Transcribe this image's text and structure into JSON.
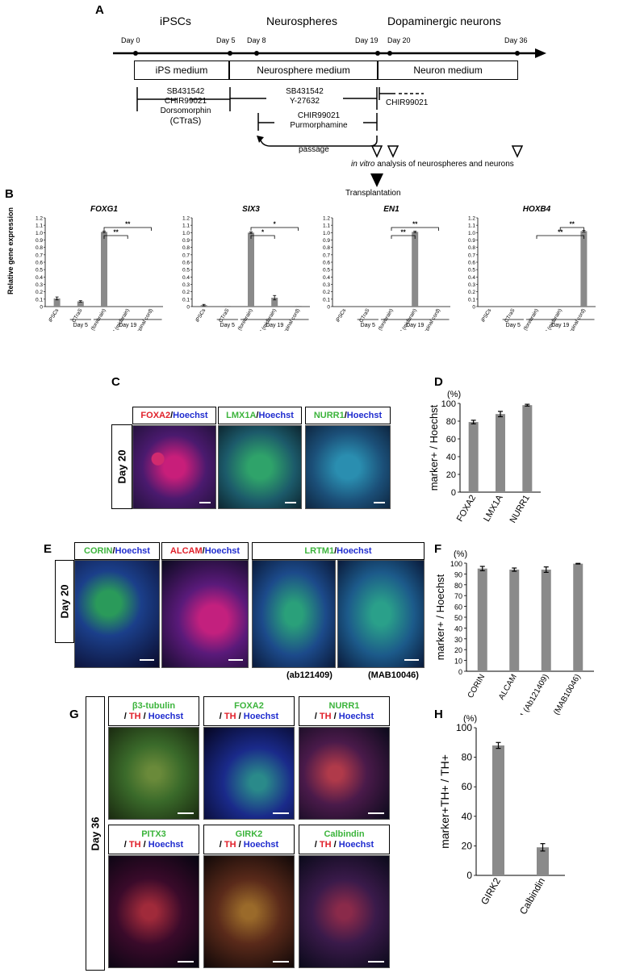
{
  "panels": {
    "A": {
      "label": "A",
      "stages": [
        "iPSCs",
        "Neurospheres",
        "Dopaminergic neurons"
      ],
      "days": [
        "Day 0",
        "Day 5",
        "Day 8",
        "Day 19",
        "Day 20",
        "Day 36"
      ],
      "media": [
        "iPS medium",
        "Neurosphere medium",
        "Neuron medium"
      ],
      "treat_ctras": [
        "SB431542",
        "CHIR99021",
        "Dorsomorphin",
        "(CTraS)"
      ],
      "treat_sb_y": [
        "SB431542",
        "Y-27632"
      ],
      "treat_chir_pm": [
        "CHIR99021",
        "Purmorphamine"
      ],
      "treat_chir_neuron": "CHIR99021",
      "passage": "passage",
      "analysis_italic": "in vitro",
      "analysis_rest": " analysis of neurospheres and neurons",
      "transplantation": "Transplantation"
    },
    "B": {
      "label": "B",
      "ylabel": "Relative gene expression"
    },
    "C": {
      "label": "C",
      "day": "Day 20",
      "images": [
        {
          "marker": "FOXA2",
          "sep": " / ",
          "stain": "Hoechst",
          "marker_color": "red"
        },
        {
          "marker": "LMX1A",
          "sep": " / ",
          "stain": "Hoechst",
          "marker_color": "green"
        },
        {
          "marker": "NURR1",
          "sep": " / ",
          "stain": "Hoechst",
          "marker_color": "green"
        }
      ]
    },
    "D": {
      "label": "D"
    },
    "E": {
      "label": "E",
      "day": "Day 20",
      "images": [
        {
          "marker": "CORIN",
          "sep": " / ",
          "stain": "Hoechst",
          "marker_color": "green"
        },
        {
          "marker": "ALCAM",
          "sep": " / ",
          "stain": "Hoechst",
          "marker_color": "red"
        },
        {
          "marker": "LRTM1",
          "sep": "/ ",
          "stain": "Hoechst",
          "marker_color": "green"
        }
      ],
      "antibodies": [
        "(ab121409)",
        "(MAB10046)"
      ]
    },
    "F": {
      "label": "F"
    },
    "G": {
      "label": "G",
      "day": "Day 36",
      "images": [
        {
          "marker": "β3-tubulin",
          "th": "TH",
          "stain": "Hoechst"
        },
        {
          "marker": "FOXA2",
          "th": "TH",
          "stain": "Hoechst"
        },
        {
          "marker": "NURR1",
          "th": "TH",
          "stain": "Hoechst"
        },
        {
          "marker": "PITX3",
          "th": "TH",
          "stain": "Hoechst"
        },
        {
          "marker": "GIRK2",
          "th": "TH",
          "stain": "Hoechst"
        },
        {
          "marker": "Calbindin",
          "th": "TH",
          "stain": "Hoechst"
        }
      ],
      "slash": "/ "
    },
    "H": {
      "label": "H"
    }
  },
  "chart_data": [
    {
      "id": "B-FOXG1",
      "type": "bar",
      "title": "FOXG1",
      "ylabel": "Relative gene expression",
      "ylim": [
        0,
        1.2
      ],
      "yticks": [
        "0",
        "0.1",
        "0.2",
        "0.3",
        "0.4",
        "0.5",
        "0.6",
        "0.7",
        "0.8",
        "0.9",
        "1.0",
        "1.1",
        "1.2"
      ],
      "categories": [
        "iPSCs",
        "CTraS",
        "IWR-1 (forebrain)",
        "CHIR+PM (midbrain)",
        "CHIR+RA (spinal cord)"
      ],
      "values": [
        0.11,
        0.07,
        1.01,
        0.0,
        0.0
      ],
      "errors": [
        0.02,
        0.01,
        0.01,
        0.0,
        0.0
      ],
      "groups": [
        {
          "label": "Day 5",
          "from": 1,
          "to": 1
        },
        {
          "label": "Day 19",
          "from": 2,
          "to": 4
        }
      ],
      "significance": [
        {
          "from": 2,
          "to": 3,
          "label": "**"
        },
        {
          "from": 2,
          "to": 4,
          "label": "**"
        }
      ]
    },
    {
      "id": "B-SIX3",
      "type": "bar",
      "title": "SIX3",
      "ylim": [
        0,
        1.2
      ],
      "yticks": [
        "0",
        "0.1",
        "0.2",
        "0.3",
        "0.4",
        "0.5",
        "0.6",
        "0.7",
        "0.8",
        "0.9",
        "1.0",
        "1.1",
        "1.2"
      ],
      "categories": [
        "iPSCs",
        "CTraS",
        "IWR-1 (forebrain)",
        "CHIR+PM (midbrain)",
        "CHIR+RA (spinal cord)"
      ],
      "values": [
        0.02,
        0.01,
        1.0,
        0.12,
        0.01
      ],
      "errors": [
        0.01,
        0.0,
        0.01,
        0.03,
        0.0
      ],
      "groups": [
        {
          "label": "Day 5",
          "from": 1,
          "to": 1
        },
        {
          "label": "Day 19",
          "from": 2,
          "to": 4
        }
      ],
      "significance": [
        {
          "from": 2,
          "to": 3,
          "label": "*"
        },
        {
          "from": 2,
          "to": 4,
          "label": "*"
        }
      ]
    },
    {
      "id": "B-EN1",
      "type": "bar",
      "title": "EN1",
      "ylim": [
        0,
        1.2
      ],
      "yticks": [
        "0",
        "0.1",
        "0.2",
        "0.3",
        "0.4",
        "0.5",
        "0.6",
        "0.7",
        "0.8",
        "0.9",
        "1.0",
        "1.1",
        "1.2"
      ],
      "categories": [
        "iPSCs",
        "CTraS",
        "IWR-1 (forebrain)",
        "CHIR+PM (midbrain)",
        "CHIR+RA (spinal cord)"
      ],
      "values": [
        0.0,
        0.0,
        0.0,
        1.01,
        0.0
      ],
      "errors": [
        0.0,
        0.0,
        0.0,
        0.01,
        0.0
      ],
      "groups": [
        {
          "label": "Day 5",
          "from": 1,
          "to": 1
        },
        {
          "label": "Day 19",
          "from": 2,
          "to": 4
        }
      ],
      "significance": [
        {
          "from": 2,
          "to": 3,
          "label": "**"
        },
        {
          "from": 2,
          "to": 4,
          "label": "**"
        }
      ]
    },
    {
      "id": "B-HOXB4",
      "type": "bar",
      "title": "HOXB4",
      "ylim": [
        0,
        1.2
      ],
      "yticks": [
        "0",
        "0.1",
        "0.2",
        "0.3",
        "0.4",
        "0.5",
        "0.6",
        "0.7",
        "0.8",
        "0.9",
        "1.0",
        "1.1",
        "1.2"
      ],
      "categories": [
        "iPSCs",
        "CTraS",
        "IWR-1 (forebrain)",
        "CHIR+PM (midbrain)",
        "CHIR+RA (spinal cord)"
      ],
      "values": [
        0.0,
        0.0,
        0.0,
        0.0,
        1.02
      ],
      "errors": [
        0.0,
        0.0,
        0.0,
        0.0,
        0.01
      ],
      "groups": [
        {
          "label": "Day 5",
          "from": 1,
          "to": 1
        },
        {
          "label": "Day 19",
          "from": 2,
          "to": 4
        }
      ],
      "significance": [
        {
          "from": 2,
          "to": 4,
          "label": "**"
        },
        {
          "from": 3,
          "to": 4,
          "label": "**"
        }
      ]
    },
    {
      "id": "D",
      "type": "bar",
      "ylabel": "marker+ / Hoechst",
      "unit": "(%)",
      "ylim": [
        0,
        100
      ],
      "yticks": [
        "0",
        "20",
        "40",
        "60",
        "80",
        "100"
      ],
      "categories": [
        "FOXA2",
        "LMX1A",
        "NURR1"
      ],
      "values": [
        79,
        88,
        98
      ],
      "errors": [
        2,
        3,
        1
      ]
    },
    {
      "id": "F",
      "type": "bar",
      "ylabel": "marker+ / Hoechst",
      "unit": "(%)",
      "ylim": [
        0,
        100
      ],
      "yticks": [
        "0",
        "10",
        "20",
        "30",
        "40",
        "50",
        "60",
        "70",
        "80",
        "90",
        "100"
      ],
      "categories": [
        "CORIN",
        "ALCAM",
        "LRTM1 (Ab121409)",
        "LRTM1 (MAB10046)"
      ],
      "values": [
        95,
        94,
        94,
        99.5
      ],
      "errors": [
        2,
        1.5,
        2.5,
        0.3
      ]
    },
    {
      "id": "H",
      "type": "bar",
      "ylabel": "marker+TH+ / TH+",
      "unit": "(%)",
      "ylim": [
        0,
        100
      ],
      "yticks": [
        "0",
        "20",
        "40",
        "60",
        "80",
        "100"
      ],
      "categories": [
        "GIRK2",
        "Calbindin"
      ],
      "values": [
        88,
        19
      ],
      "errors": [
        2,
        2.5
      ]
    }
  ]
}
